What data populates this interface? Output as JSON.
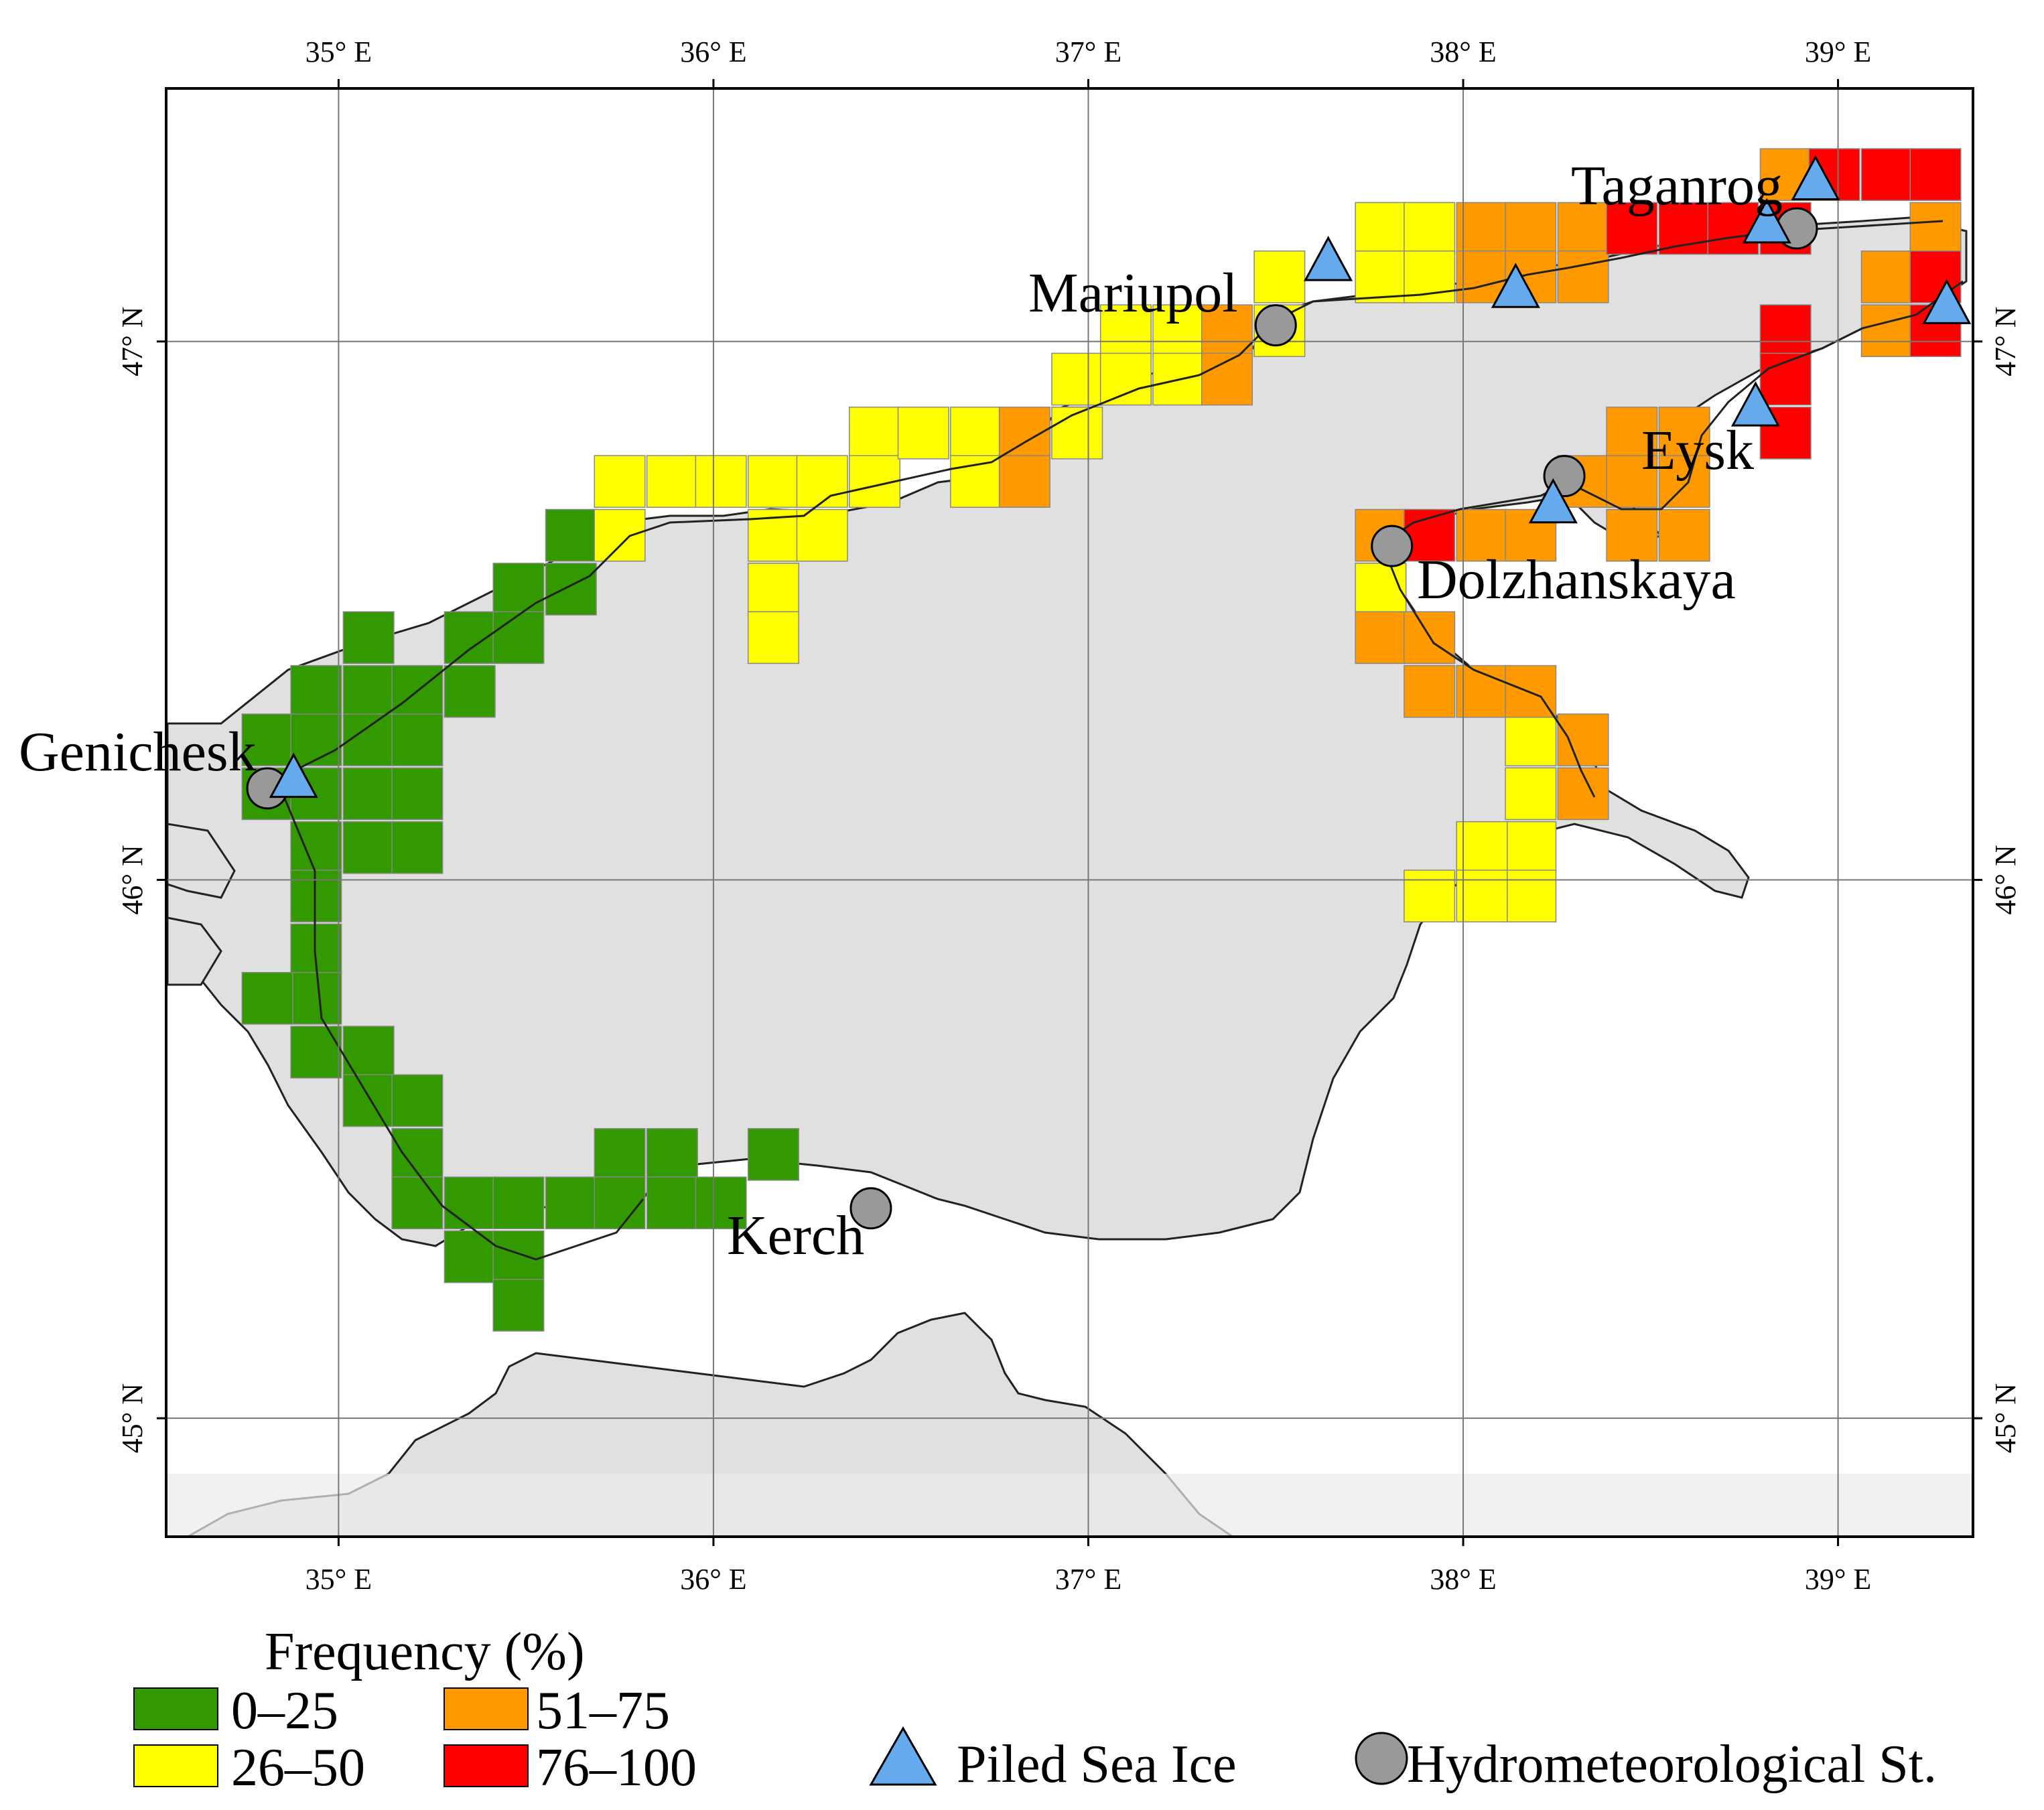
{
  "map": {
    "longitude_labels": [
      "35° E",
      "36° E",
      "37° E",
      "38° E",
      "39° E"
    ],
    "latitude_labels": [
      "45° N",
      "46° N",
      "47° N"
    ],
    "extent": {
      "lon_min": 34.54,
      "lon_max": 39.36,
      "lat_min": 44.78,
      "lat_max": 47.47
    },
    "grid_cell": {
      "dlon": 0.135,
      "dlat": 0.096
    },
    "colors": {
      "sea": "#e0e0e0",
      "land": "#ffffff",
      "coast": "#222222",
      "c0_25": "#339900",
      "c26_50": "#ffff00",
      "c51_75": "#ff9900",
      "c76_100": "#ff0000",
      "triangle": "#66aaee",
      "station": "#999999"
    },
    "cities": [
      {
        "name": "Genichesk",
        "lon": 34.82,
        "lat": 46.17
      },
      {
        "name": "Mariupol",
        "lon": 37.5,
        "lat": 47.03
      },
      {
        "name": "Taganrog",
        "lon": 38.9,
        "lat": 47.21
      },
      {
        "name": "Eysk",
        "lon": 38.27,
        "lat": 46.72
      },
      {
        "name": "Dolzhanskaya",
        "lon": 37.81,
        "lat": 46.63
      },
      {
        "name": "Kerch",
        "lon": 36.42,
        "lat": 45.39
      }
    ],
    "stations": [
      {
        "lon": 34.81,
        "lat": 46.17
      },
      {
        "lon": 37.5,
        "lat": 47.03
      },
      {
        "lon": 38.89,
        "lat": 47.21
      },
      {
        "lon": 38.27,
        "lat": 46.75
      },
      {
        "lon": 37.81,
        "lat": 46.62
      },
      {
        "lon": 36.42,
        "lat": 45.39
      }
    ],
    "piled_ice": [
      {
        "lon": 34.88,
        "lat": 46.19
      },
      {
        "lon": 37.64,
        "lat": 47.15
      },
      {
        "lon": 38.14,
        "lat": 47.1
      },
      {
        "lon": 38.24,
        "lat": 46.7
      },
      {
        "lon": 38.78,
        "lat": 46.88
      },
      {
        "lon": 38.81,
        "lat": 47.22
      },
      {
        "lon": 38.94,
        "lat": 47.3
      },
      {
        "lon": 39.29,
        "lat": 47.07
      }
    ],
    "cells": [
      {
        "lon": 34.81,
        "lat": 46.16,
        "cls": "0-25"
      },
      {
        "lon": 34.81,
        "lat": 46.26,
        "cls": "0-25"
      },
      {
        "lon": 34.94,
        "lat": 46.35,
        "cls": "0-25"
      },
      {
        "lon": 34.94,
        "lat": 46.26,
        "cls": "0-25"
      },
      {
        "lon": 34.94,
        "lat": 46.16,
        "cls": "0-25"
      },
      {
        "lon": 34.94,
        "lat": 46.06,
        "cls": "0-25"
      },
      {
        "lon": 34.94,
        "lat": 45.97,
        "cls": "0-25"
      },
      {
        "lon": 34.94,
        "lat": 45.87,
        "cls": "0-25"
      },
      {
        "lon": 34.94,
        "lat": 45.78,
        "cls": "0-25"
      },
      {
        "lon": 34.94,
        "lat": 45.68,
        "cls": "0-25"
      },
      {
        "lon": 34.81,
        "lat": 45.78,
        "cls": "0-25"
      },
      {
        "lon": 35.08,
        "lat": 46.45,
        "cls": "0-25"
      },
      {
        "lon": 35.08,
        "lat": 46.35,
        "cls": "0-25"
      },
      {
        "lon": 35.08,
        "lat": 46.26,
        "cls": "0-25"
      },
      {
        "lon": 35.08,
        "lat": 46.16,
        "cls": "0-25"
      },
      {
        "lon": 35.08,
        "lat": 46.06,
        "cls": "0-25"
      },
      {
        "lon": 35.08,
        "lat": 45.68,
        "cls": "0-25"
      },
      {
        "lon": 35.08,
        "lat": 45.59,
        "cls": "0-25"
      },
      {
        "lon": 35.21,
        "lat": 46.35,
        "cls": "0-25"
      },
      {
        "lon": 35.21,
        "lat": 46.26,
        "cls": "0-25"
      },
      {
        "lon": 35.21,
        "lat": 46.16,
        "cls": "0-25"
      },
      {
        "lon": 35.21,
        "lat": 46.06,
        "cls": "0-25"
      },
      {
        "lon": 35.21,
        "lat": 45.59,
        "cls": "0-25"
      },
      {
        "lon": 35.21,
        "lat": 45.49,
        "cls": "0-25"
      },
      {
        "lon": 35.21,
        "lat": 45.4,
        "cls": "0-25"
      },
      {
        "lon": 35.35,
        "lat": 46.45,
        "cls": "0-25"
      },
      {
        "lon": 35.35,
        "lat": 46.35,
        "cls": "0-25"
      },
      {
        "lon": 35.35,
        "lat": 45.4,
        "cls": "0-25"
      },
      {
        "lon": 35.35,
        "lat": 45.3,
        "cls": "0-25"
      },
      {
        "lon": 35.48,
        "lat": 46.54,
        "cls": "0-25"
      },
      {
        "lon": 35.48,
        "lat": 46.45,
        "cls": "0-25"
      },
      {
        "lon": 35.48,
        "lat": 45.4,
        "cls": "0-25"
      },
      {
        "lon": 35.48,
        "lat": 45.3,
        "cls": "0-25"
      },
      {
        "lon": 35.48,
        "lat": 45.21,
        "cls": "0-25"
      },
      {
        "lon": 35.62,
        "lat": 46.64,
        "cls": "0-25"
      },
      {
        "lon": 35.62,
        "lat": 46.54,
        "cls": "0-25"
      },
      {
        "lon": 35.62,
        "lat": 45.4,
        "cls": "0-25"
      },
      {
        "lon": 35.75,
        "lat": 45.49,
        "cls": "0-25"
      },
      {
        "lon": 35.75,
        "lat": 45.4,
        "cls": "0-25"
      },
      {
        "lon": 35.89,
        "lat": 45.49,
        "cls": "0-25"
      },
      {
        "lon": 35.89,
        "lat": 45.4,
        "cls": "0-25"
      },
      {
        "lon": 36.02,
        "lat": 45.4,
        "cls": "0-25"
      },
      {
        "lon": 36.16,
        "lat": 45.49,
        "cls": "0-25"
      },
      {
        "lon": 35.75,
        "lat": 46.74,
        "cls": "26-50"
      },
      {
        "lon": 35.75,
        "lat": 46.64,
        "cls": "26-50"
      },
      {
        "lon": 35.89,
        "lat": 46.74,
        "cls": "26-50"
      },
      {
        "lon": 36.02,
        "lat": 46.74,
        "cls": "26-50"
      },
      {
        "lon": 36.16,
        "lat": 46.74,
        "cls": "26-50"
      },
      {
        "lon": 36.16,
        "lat": 46.64,
        "cls": "26-50"
      },
      {
        "lon": 36.16,
        "lat": 46.54,
        "cls": "26-50"
      },
      {
        "lon": 36.16,
        "lat": 46.45,
        "cls": "26-50"
      },
      {
        "lon": 36.29,
        "lat": 46.74,
        "cls": "26-50"
      },
      {
        "lon": 36.29,
        "lat": 46.64,
        "cls": "26-50"
      },
      {
        "lon": 36.43,
        "lat": 46.83,
        "cls": "26-50"
      },
      {
        "lon": 36.43,
        "lat": 46.74,
        "cls": "26-50"
      },
      {
        "lon": 36.56,
        "lat": 46.83,
        "cls": "26-50"
      },
      {
        "lon": 36.7,
        "lat": 46.83,
        "cls": "26-50"
      },
      {
        "lon": 36.7,
        "lat": 46.74,
        "cls": "26-50"
      },
      {
        "lon": 36.97,
        "lat": 46.93,
        "cls": "26-50"
      },
      {
        "lon": 36.97,
        "lat": 46.83,
        "cls": "26-50"
      },
      {
        "lon": 37.1,
        "lat": 47.02,
        "cls": "26-50"
      },
      {
        "lon": 37.1,
        "lat": 46.93,
        "cls": "26-50"
      },
      {
        "lon": 37.24,
        "lat": 47.02,
        "cls": "26-50"
      },
      {
        "lon": 37.24,
        "lat": 46.93,
        "cls": "26-50"
      },
      {
        "lon": 37.51,
        "lat": 47.02,
        "cls": "26-50"
      },
      {
        "lon": 37.51,
        "lat": 47.12,
        "cls": "26-50"
      },
      {
        "lon": 37.78,
        "lat": 47.21,
        "cls": "26-50"
      },
      {
        "lon": 37.78,
        "lat": 47.12,
        "cls": "26-50"
      },
      {
        "lon": 37.91,
        "lat": 47.21,
        "cls": "26-50"
      },
      {
        "lon": 37.91,
        "lat": 47.12,
        "cls": "26-50"
      },
      {
        "lon": 37.78,
        "lat": 46.54,
        "cls": "26-50"
      },
      {
        "lon": 38.18,
        "lat": 46.26,
        "cls": "26-50"
      },
      {
        "lon": 38.18,
        "lat": 46.16,
        "cls": "26-50"
      },
      {
        "lon": 38.18,
        "lat": 46.06,
        "cls": "26-50"
      },
      {
        "lon": 38.18,
        "lat": 45.97,
        "cls": "26-50"
      },
      {
        "lon": 38.05,
        "lat": 46.06,
        "cls": "26-50"
      },
      {
        "lon": 38.05,
        "lat": 45.97,
        "cls": "26-50"
      },
      {
        "lon": 37.91,
        "lat": 45.97,
        "cls": "26-50"
      },
      {
        "lon": 36.83,
        "lat": 46.83,
        "cls": "51-75"
      },
      {
        "lon": 36.83,
        "lat": 46.74,
        "cls": "51-75"
      },
      {
        "lon": 37.37,
        "lat": 47.02,
        "cls": "51-75"
      },
      {
        "lon": 37.37,
        "lat": 46.93,
        "cls": "51-75"
      },
      {
        "lon": 38.05,
        "lat": 47.21,
        "cls": "51-75"
      },
      {
        "lon": 38.05,
        "lat": 47.12,
        "cls": "51-75"
      },
      {
        "lon": 38.18,
        "lat": 47.21,
        "cls": "51-75"
      },
      {
        "lon": 38.18,
        "lat": 47.12,
        "cls": "51-75"
      },
      {
        "lon": 38.32,
        "lat": 47.21,
        "cls": "51-75"
      },
      {
        "lon": 38.32,
        "lat": 47.12,
        "cls": "51-75"
      },
      {
        "lon": 37.78,
        "lat": 46.64,
        "cls": "51-75"
      },
      {
        "lon": 37.78,
        "lat": 46.45,
        "cls": "51-75"
      },
      {
        "lon": 37.91,
        "lat": 46.45,
        "cls": "51-75"
      },
      {
        "lon": 37.91,
        "lat": 46.35,
        "cls": "51-75"
      },
      {
        "lon": 38.05,
        "lat": 46.64,
        "cls": "51-75"
      },
      {
        "lon": 38.05,
        "lat": 46.35,
        "cls": "51-75"
      },
      {
        "lon": 38.18,
        "lat": 46.64,
        "cls": "51-75"
      },
      {
        "lon": 38.18,
        "lat": 46.35,
        "cls": "51-75"
      },
      {
        "lon": 38.32,
        "lat": 46.74,
        "cls": "51-75"
      },
      {
        "lon": 38.32,
        "lat": 46.26,
        "cls": "51-75"
      },
      {
        "lon": 38.32,
        "lat": 46.16,
        "cls": "51-75"
      },
      {
        "lon": 38.45,
        "lat": 46.83,
        "cls": "51-75"
      },
      {
        "lon": 38.45,
        "lat": 46.74,
        "cls": "51-75"
      },
      {
        "lon": 38.45,
        "lat": 46.64,
        "cls": "51-75"
      },
      {
        "lon": 38.59,
        "lat": 46.83,
        "cls": "51-75"
      },
      {
        "lon": 38.59,
        "lat": 46.74,
        "cls": "51-75"
      },
      {
        "lon": 38.59,
        "lat": 46.64,
        "cls": "51-75"
      },
      {
        "lon": 38.86,
        "lat": 47.31,
        "cls": "51-75"
      },
      {
        "lon": 39.13,
        "lat": 47.12,
        "cls": "51-75"
      },
      {
        "lon": 39.13,
        "lat": 47.02,
        "cls": "51-75"
      },
      {
        "lon": 39.26,
        "lat": 47.21,
        "cls": "51-75"
      },
      {
        "lon": 37.91,
        "lat": 46.64,
        "cls": "76-100"
      },
      {
        "lon": 38.45,
        "lat": 47.21,
        "cls": "76-100"
      },
      {
        "lon": 38.59,
        "lat": 47.21,
        "cls": "76-100"
      },
      {
        "lon": 38.72,
        "lat": 47.21,
        "cls": "76-100"
      },
      {
        "lon": 38.86,
        "lat": 47.21,
        "cls": "76-100"
      },
      {
        "lon": 38.86,
        "lat": 47.02,
        "cls": "76-100"
      },
      {
        "lon": 38.86,
        "lat": 46.93,
        "cls": "76-100"
      },
      {
        "lon": 38.86,
        "lat": 46.83,
        "cls": "76-100"
      },
      {
        "lon": 38.99,
        "lat": 47.31,
        "cls": "76-100"
      },
      {
        "lon": 39.13,
        "lat": 47.31,
        "cls": "76-100"
      },
      {
        "lon": 39.26,
        "lat": 47.31,
        "cls": "76-100"
      },
      {
        "lon": 39.26,
        "lat": 47.12,
        "cls": "76-100"
      },
      {
        "lon": 39.26,
        "lat": 47.02,
        "cls": "76-100"
      }
    ]
  },
  "legend": {
    "title": "Frequency (%)",
    "bins": [
      {
        "label": "0–25",
        "color": "#339900"
      },
      {
        "label": "26–50",
        "color": "#ffff00"
      },
      {
        "label": "51–75",
        "color": "#ff9900"
      },
      {
        "label": "76–100",
        "color": "#ff0000"
      }
    ],
    "piled_ice_label": "Piled Sea Ice",
    "station_label": "Hydrometeorological St."
  }
}
